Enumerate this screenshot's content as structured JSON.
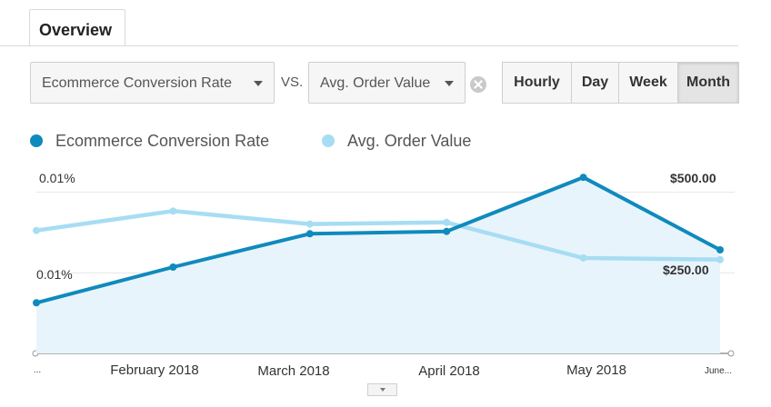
{
  "tabs": {
    "overview_label": "Overview"
  },
  "selectors": {
    "primary_metric": "Ecommerce Conversion Rate",
    "vs_label": "VS.",
    "secondary_metric": "Avg. Order Value"
  },
  "granularity": {
    "options": [
      "Hourly",
      "Day",
      "Week",
      "Month"
    ],
    "active": "Month"
  },
  "legend": [
    {
      "label": "Ecommerce Conversion Rate",
      "color": "#0f8abd"
    },
    {
      "label": "Avg. Order Value",
      "color": "#a7ddf3"
    }
  ],
  "chart_data": {
    "type": "line",
    "categories": [
      "...",
      "February 2018",
      "March 2018",
      "April 2018",
      "May 2018",
      "June..."
    ],
    "series": [
      {
        "name": "Ecommerce Conversion Rate",
        "color": "#0f8abd",
        "axis": "left",
        "values": [
          0.0044,
          0.0075,
          0.0104,
          0.0106,
          0.0153,
          0.009
        ]
      },
      {
        "name": "Avg. Order Value",
        "color": "#a7ddf3",
        "axis": "right",
        "values": [
          380,
          440,
          400,
          405,
          295,
          290
        ]
      }
    ],
    "left_axis": {
      "ticks": [
        "0.01%",
        "0.01%"
      ],
      "tick_values": [
        0.014,
        0.007
      ],
      "range": [
        0,
        0.0165
      ]
    },
    "right_axis": {
      "ticks": [
        "$500.00",
        "$250.00"
      ],
      "tick_values": [
        500,
        250
      ],
      "range": [
        0,
        587
      ]
    },
    "grid": true
  }
}
